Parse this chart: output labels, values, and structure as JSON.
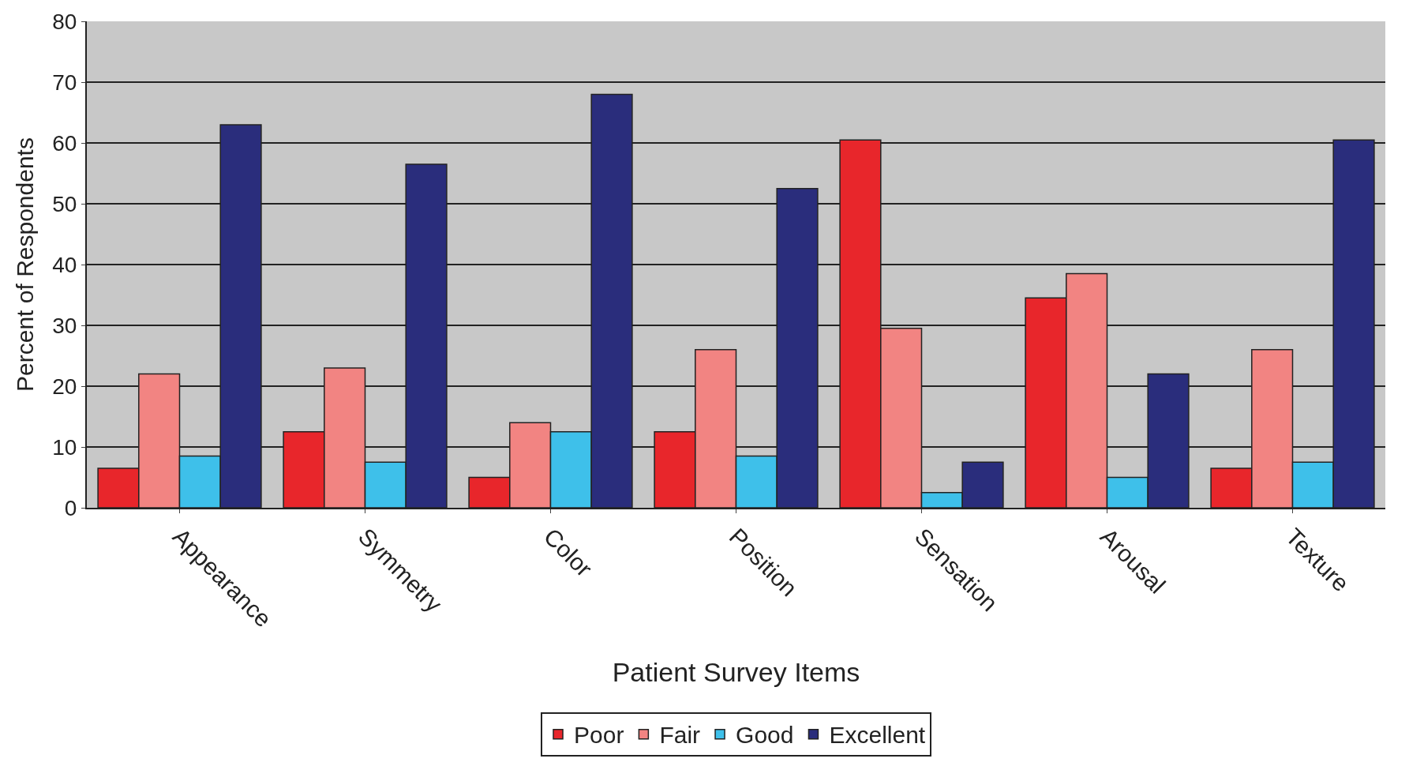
{
  "chart_data": {
    "type": "bar",
    "xlabel": "Patient Survey Items",
    "ylabel": "Percent of Respondents",
    "categories": [
      "Appearance",
      "Symmetry",
      "Color",
      "Position",
      "Sensation",
      "Arousal",
      "Texture"
    ],
    "series": [
      {
        "name": "Poor",
        "color": "#e8262b",
        "values": [
          6.5,
          12.5,
          5,
          12.5,
          60.5,
          34.5,
          6.5
        ]
      },
      {
        "name": "Fair",
        "color": "#f28482",
        "values": [
          22,
          23,
          14,
          26,
          29.5,
          38.5,
          26
        ]
      },
      {
        "name": "Good",
        "color": "#3ec0ea",
        "values": [
          8.5,
          7.5,
          12.5,
          8.5,
          2.5,
          5,
          7.5
        ]
      },
      {
        "name": "Excellent",
        "color": "#2a2d7c",
        "values": [
          63,
          56.5,
          68,
          52.5,
          7.5,
          22,
          60.5
        ]
      }
    ],
    "ylim": [
      0,
      80
    ],
    "yticks": [
      0,
      10,
      20,
      30,
      40,
      50,
      60,
      70,
      80
    ],
    "grid": "y",
    "legend": "bottom"
  }
}
